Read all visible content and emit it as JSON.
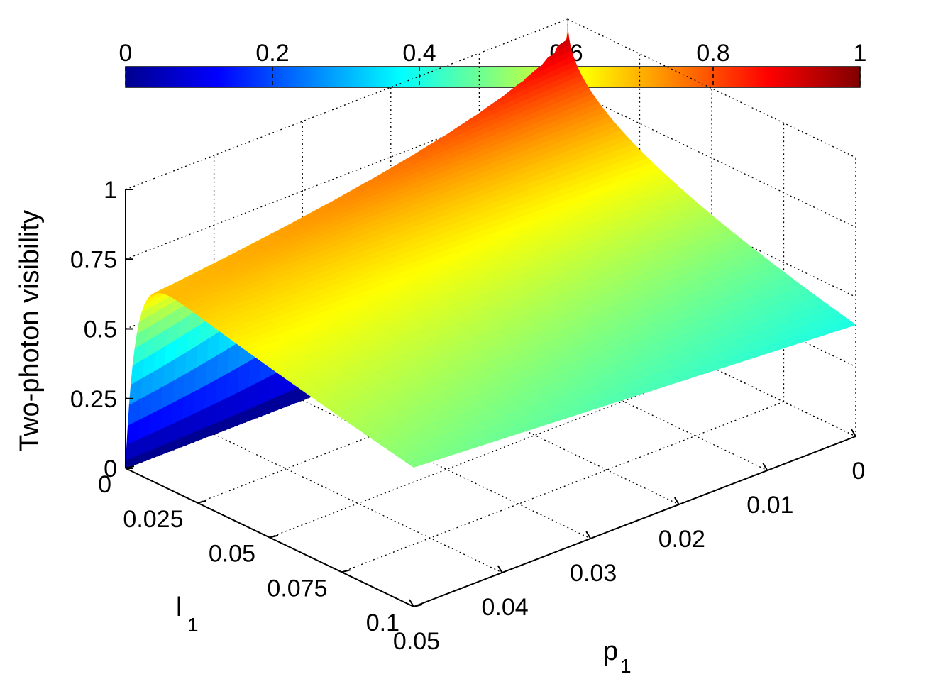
{
  "chart_data": {
    "type": "surface",
    "zlabel": "Two-photon visibility",
    "xlabel": "p",
    "xlabel_sub": "1",
    "ylabel": "l",
    "ylabel_sub": "1",
    "x_axis": {
      "name": "p1",
      "range": [
        0,
        0.05
      ],
      "ticks": [
        0,
        0.01,
        0.02,
        0.03,
        0.04,
        0.05
      ],
      "tick_labels": [
        "0",
        "0.01",
        "0.02",
        "0.03",
        "0.04",
        "0.05"
      ]
    },
    "y_axis": {
      "name": "l1",
      "range": [
        0,
        0.1
      ],
      "ticks": [
        0,
        0.025,
        0.05,
        0.075,
        0.1
      ],
      "tick_labels": [
        "0",
        "0.025",
        "0.05",
        "0.075",
        "0.1"
      ]
    },
    "z_axis": {
      "name": "Two-photon visibility",
      "range": [
        0,
        1
      ],
      "ticks": [
        0,
        0.25,
        0.5,
        0.75,
        1
      ],
      "tick_labels": [
        "0",
        "0.25",
        "0.5",
        "0.75",
        "1"
      ]
    },
    "colorbar": {
      "orientation": "horizontal",
      "placement": "top",
      "colormap": "jet",
      "range": [
        0,
        1
      ],
      "ticks": [
        0,
        0.2,
        0.4,
        0.6,
        0.8,
        1
      ],
      "tick_labels": [
        "0",
        "0.2",
        "0.4",
        "0.6",
        "0.8",
        "1"
      ]
    },
    "grid": true,
    "surface_samples": [
      {
        "p1": 0,
        "l1": 0,
        "visibility": 1.0
      },
      {
        "p1": 0,
        "l1": 0.1,
        "visibility": 0.4
      },
      {
        "p1": 0.05,
        "l1": 0,
        "visibility": 0.0
      },
      {
        "p1": 0.05,
        "l1": 0.002,
        "visibility": 0.76
      },
      {
        "p1": 0.05,
        "l1": 0.1,
        "visibility": 0.5
      },
      {
        "p1": 0.01,
        "l1": 0.05,
        "visibility": 0.55
      },
      {
        "p1": 0.03,
        "l1": 0.05,
        "visibility": 0.62
      }
    ]
  }
}
